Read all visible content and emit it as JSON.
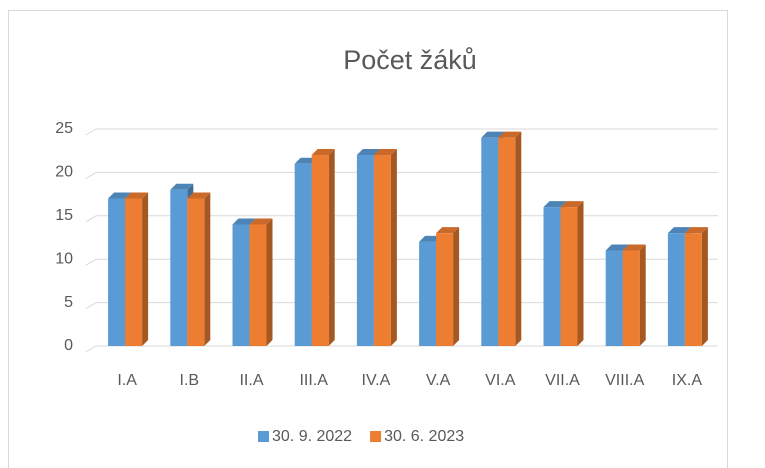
{
  "chart_data": {
    "type": "bar",
    "title": "Počet žáků",
    "categories": [
      "I.A",
      "I.B",
      "II.A",
      "III.A",
      "IV.A",
      "V.A",
      "VI.A",
      "VII.A",
      "VIII.A",
      "IX.A"
    ],
    "series": [
      {
        "name": "30. 9. 2022",
        "color": "#5b9bd5",
        "values": [
          17,
          18,
          14,
          21,
          22,
          12,
          24,
          16,
          11,
          13
        ]
      },
      {
        "name": "30. 6. 2023",
        "color": "#ed7d31",
        "values": [
          17,
          17,
          14,
          22,
          22,
          13,
          24,
          16,
          11,
          13
        ]
      }
    ],
    "ylim": [
      0,
      25
    ],
    "yticks": [
      0,
      5,
      10,
      15,
      20,
      25
    ],
    "grid": true,
    "legend": "bottom"
  }
}
